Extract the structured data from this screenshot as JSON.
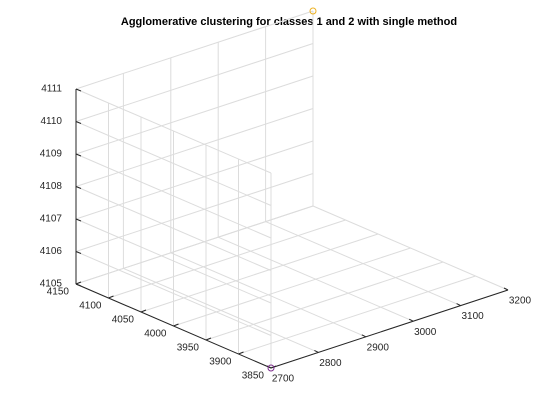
{
  "chart_data": {
    "type": "scatter",
    "title": "Agglomerative clustering for classes 1 and 2 with single method",
    "xlabel": "",
    "ylabel": "",
    "zlabel": "",
    "x_ticks": [
      "2700",
      "2800",
      "2900",
      "3000",
      "3100",
      "3200"
    ],
    "y_ticks": [
      "3850",
      "3900",
      "3950",
      "4000",
      "4050",
      "4100",
      "4150"
    ],
    "z_ticks": [
      "4105",
      "4106",
      "4107",
      "4108",
      "4109",
      "4110",
      "4111"
    ],
    "xlim": [
      2700,
      3200
    ],
    "ylim": [
      3850,
      4150
    ],
    "zlim": [
      4105,
      4111
    ],
    "grid": true,
    "series": [
      {
        "color": "#7E2F8E",
        "marker": "circle",
        "points": [
          {
            "x": 2700,
            "y": 3850,
            "z": 4105
          }
        ]
      },
      {
        "color": "#EDB120",
        "marker": "circle",
        "points": [
          {
            "x": 3200,
            "y": 4150,
            "z": 4111
          }
        ]
      }
    ]
  }
}
